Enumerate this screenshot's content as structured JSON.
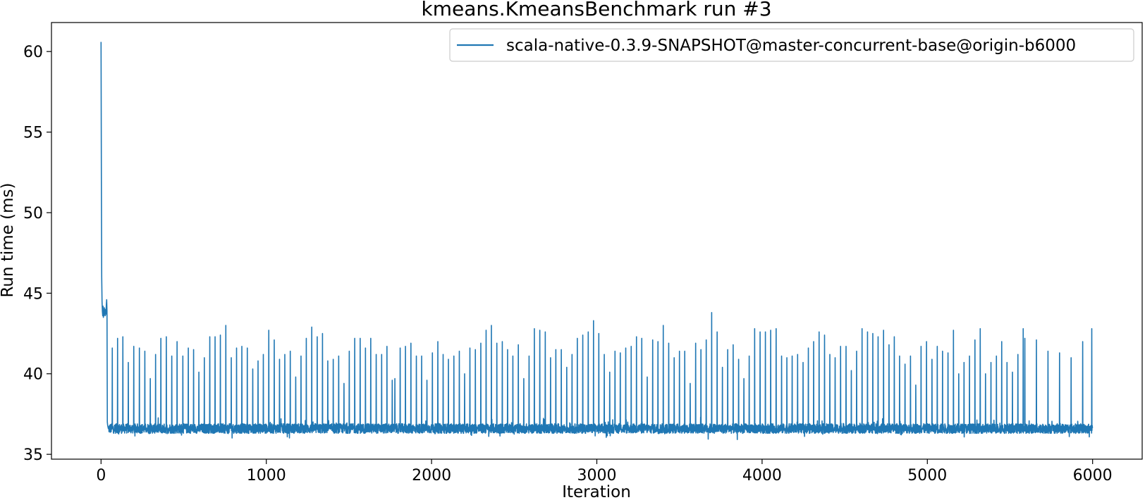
{
  "chart_data": {
    "type": "line",
    "title": "kmeans.KmeansBenchmark run #3",
    "xlabel": "Iteration",
    "ylabel": "Run time (ms)",
    "xlim": [
      -300,
      6300
    ],
    "ylim": [
      34.7,
      61.8
    ],
    "xticks": [
      0,
      1000,
      2000,
      3000,
      4000,
      5000,
      6000
    ],
    "yticks": [
      35,
      40,
      45,
      50,
      55,
      60
    ],
    "grid": false,
    "legend_position": "top-right",
    "color": "#1f77b4",
    "series": [
      {
        "name": "scala-native-0.3.9-SNAPSHOT@master-concurrent-base@origin-b6000",
        "n_iterations": 6000,
        "warmup": [
          [
            0,
            60.6
          ],
          [
            2,
            52.0
          ],
          [
            4,
            46.0
          ],
          [
            6,
            44.5
          ],
          [
            8,
            43.9
          ],
          [
            10,
            43.6
          ],
          [
            12,
            44.2
          ],
          [
            14,
            43.5
          ],
          [
            16,
            43.8
          ],
          [
            18,
            43.6
          ],
          [
            20,
            44.1
          ],
          [
            22,
            43.7
          ],
          [
            24,
            44.0
          ],
          [
            26,
            43.6
          ],
          [
            28,
            43.9
          ],
          [
            30,
            43.7
          ],
          [
            32,
            44.3
          ],
          [
            34,
            44.6
          ],
          [
            36,
            43.9
          ],
          [
            38,
            37.0
          ],
          [
            40,
            36.8
          ],
          [
            44,
            36.6
          ]
        ],
        "baseline_mean": 36.6,
        "baseline_noise": 0.3,
        "spikes": [
          [
            68,
            41.6
          ],
          [
            100,
            42.2
          ],
          [
            132,
            42.3
          ],
          [
            165,
            40.7
          ],
          [
            198,
            41.7
          ],
          [
            232,
            41.6
          ],
          [
            265,
            41.4
          ],
          [
            298,
            39.7
          ],
          [
            330,
            41.2
          ],
          [
            362,
            42.2
          ],
          [
            395,
            42.3
          ],
          [
            428,
            41.1
          ],
          [
            460,
            42.0
          ],
          [
            495,
            41.1
          ],
          [
            528,
            41.6
          ],
          [
            560,
            41.5
          ],
          [
            592,
            40.1
          ],
          [
            625,
            41.0
          ],
          [
            658,
            42.3
          ],
          [
            690,
            42.3
          ],
          [
            722,
            42.4
          ],
          [
            755,
            43.0
          ],
          [
            788,
            41.0
          ],
          [
            820,
            41.6
          ],
          [
            852,
            41.7
          ],
          [
            885,
            41.6
          ],
          [
            918,
            40.3
          ],
          [
            950,
            40.8
          ],
          [
            982,
            41.2
          ],
          [
            1015,
            42.7
          ],
          [
            1048,
            42.1
          ],
          [
            1080,
            40.9
          ],
          [
            1112,
            41.2
          ],
          [
            1145,
            41.4
          ],
          [
            1178,
            39.8
          ],
          [
            1210,
            41.1
          ],
          [
            1242,
            42.2
          ],
          [
            1275,
            42.9
          ],
          [
            1308,
            42.3
          ],
          [
            1340,
            42.5
          ],
          [
            1372,
            40.8
          ],
          [
            1405,
            40.9
          ],
          [
            1438,
            41.1
          ],
          [
            1470,
            39.4
          ],
          [
            1502,
            41.4
          ],
          [
            1535,
            42.2
          ],
          [
            1568,
            42.2
          ],
          [
            1600,
            41.6
          ],
          [
            1632,
            42.2
          ],
          [
            1665,
            41.2
          ],
          [
            1698,
            41.2
          ],
          [
            1730,
            41.7
          ],
          [
            1762,
            39.6
          ],
          [
            1778,
            39.7
          ],
          [
            1810,
            41.6
          ],
          [
            1842,
            41.7
          ],
          [
            1875,
            41.9
          ],
          [
            1908,
            41.1
          ],
          [
            1940,
            41.1
          ],
          [
            1972,
            39.6
          ],
          [
            2005,
            41.3
          ],
          [
            2038,
            42.0
          ],
          [
            2070,
            41.2
          ],
          [
            2102,
            40.9
          ],
          [
            2135,
            41.1
          ],
          [
            2168,
            41.4
          ],
          [
            2200,
            40.0
          ],
          [
            2232,
            41.6
          ],
          [
            2265,
            41.5
          ],
          [
            2298,
            41.9
          ],
          [
            2330,
            42.7
          ],
          [
            2362,
            43.0
          ],
          [
            2395,
            41.9
          ],
          [
            2428,
            42.0
          ],
          [
            2460,
            41.5
          ],
          [
            2492,
            41.1
          ],
          [
            2525,
            41.8
          ],
          [
            2558,
            39.7
          ],
          [
            2590,
            41.1
          ],
          [
            2622,
            42.8
          ],
          [
            2655,
            42.7
          ],
          [
            2688,
            42.6
          ],
          [
            2720,
            41.0
          ],
          [
            2752,
            41.5
          ],
          [
            2785,
            41.5
          ],
          [
            2818,
            40.4
          ],
          [
            2850,
            41.2
          ],
          [
            2882,
            42.2
          ],
          [
            2915,
            42.4
          ],
          [
            2948,
            42.6
          ],
          [
            2980,
            43.3
          ],
          [
            3012,
            42.5
          ],
          [
            3045,
            41.2
          ],
          [
            3078,
            40.1
          ],
          [
            3110,
            41.4
          ],
          [
            3142,
            41.3
          ],
          [
            3175,
            41.6
          ],
          [
            3208,
            41.7
          ],
          [
            3240,
            42.3
          ],
          [
            3272,
            42.2
          ],
          [
            3305,
            39.8
          ],
          [
            3338,
            42.1
          ],
          [
            3370,
            42.0
          ],
          [
            3402,
            43.0
          ],
          [
            3435,
            41.9
          ],
          [
            3468,
            41.0
          ],
          [
            3500,
            41.4
          ],
          [
            3532,
            41.4
          ],
          [
            3565,
            39.4
          ],
          [
            3598,
            41.9
          ],
          [
            3630,
            41.5
          ],
          [
            3662,
            42.1
          ],
          [
            3695,
            43.8
          ],
          [
            3728,
            42.6
          ],
          [
            3760,
            40.4
          ],
          [
            3792,
            41.5
          ],
          [
            3825,
            41.8
          ],
          [
            3858,
            40.9
          ],
          [
            3890,
            39.7
          ],
          [
            3922,
            41.1
          ],
          [
            3955,
            42.8
          ],
          [
            3988,
            42.6
          ],
          [
            4020,
            42.6
          ],
          [
            4052,
            42.7
          ],
          [
            4085,
            42.8
          ],
          [
            4118,
            41.1
          ],
          [
            4150,
            41.0
          ],
          [
            4182,
            41.1
          ],
          [
            4215,
            41.2
          ],
          [
            4248,
            40.7
          ],
          [
            4280,
            41.6
          ],
          [
            4312,
            42.0
          ],
          [
            4345,
            42.6
          ],
          [
            4378,
            42.4
          ],
          [
            4410,
            41.2
          ],
          [
            4442,
            41.0
          ],
          [
            4475,
            41.7
          ],
          [
            4508,
            41.7
          ],
          [
            4540,
            40.2
          ],
          [
            4572,
            41.4
          ],
          [
            4605,
            42.8
          ],
          [
            4638,
            42.6
          ],
          [
            4670,
            42.5
          ],
          [
            4702,
            42.3
          ],
          [
            4735,
            42.7
          ],
          [
            4768,
            41.8
          ],
          [
            4800,
            42.3
          ],
          [
            4832,
            41.1
          ],
          [
            4865,
            40.6
          ],
          [
            4898,
            41.1
          ],
          [
            4930,
            39.3
          ],
          [
            4962,
            41.7
          ],
          [
            4995,
            42.0
          ],
          [
            5028,
            40.9
          ],
          [
            5060,
            41.7
          ],
          [
            5092,
            41.4
          ],
          [
            5125,
            41.3
          ],
          [
            5158,
            42.7
          ],
          [
            5190,
            40.0
          ],
          [
            5222,
            40.7
          ],
          [
            5255,
            41.1
          ],
          [
            5288,
            42.1
          ],
          [
            5320,
            42.8
          ],
          [
            5352,
            40.0
          ],
          [
            5385,
            40.7
          ],
          [
            5418,
            41.1
          ],
          [
            5450,
            42.0
          ],
          [
            5482,
            40.7
          ],
          [
            5515,
            40.1
          ],
          [
            5548,
            41.2
          ],
          [
            5580,
            42.8
          ],
          [
            5590,
            42.2
          ],
          [
            5660,
            42.1
          ],
          [
            5730,
            41.4
          ],
          [
            5800,
            41.3
          ],
          [
            5870,
            41.0
          ],
          [
            5940,
            42.0
          ],
          [
            5995,
            42.8
          ]
        ]
      }
    ]
  }
}
